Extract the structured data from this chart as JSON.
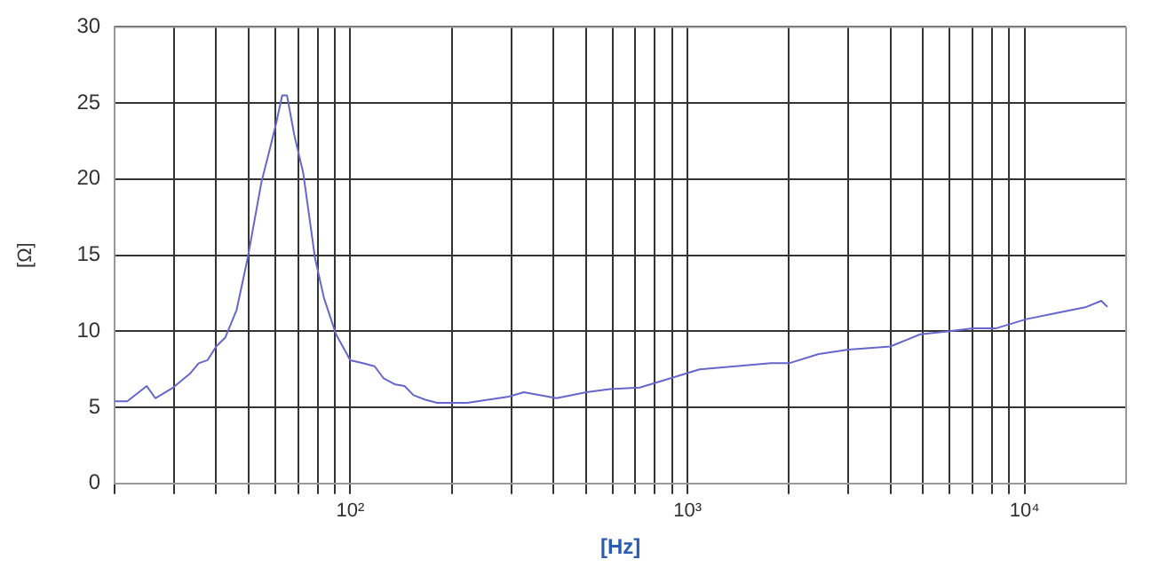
{
  "chart_data": {
    "type": "line",
    "xlabel": "[Hz]",
    "ylabel": "[Ω]",
    "log": "x",
    "grid": true,
    "legend": false,
    "marker": "none",
    "line_style": "solid",
    "xlim": [
      20,
      20000
    ],
    "ylim": [
      0,
      30
    ],
    "yticks": [
      0,
      5,
      10,
      15,
      20,
      25,
      30
    ],
    "xticks": [
      {
        "value": 20,
        "label": null
      },
      {
        "value": 30,
        "label": null
      },
      {
        "value": 40,
        "label": null
      },
      {
        "value": 50,
        "label": null
      },
      {
        "value": 60,
        "label": null
      },
      {
        "value": 70,
        "label": null
      },
      {
        "value": 80,
        "label": null
      },
      {
        "value": 90,
        "label": null
      },
      {
        "value": 100,
        "label": "10²"
      },
      {
        "value": 200,
        "label": null
      },
      {
        "value": 300,
        "label": null
      },
      {
        "value": 400,
        "label": null
      },
      {
        "value": 500,
        "label": null
      },
      {
        "value": 600,
        "label": null
      },
      {
        "value": 700,
        "label": null
      },
      {
        "value": 800,
        "label": null
      },
      {
        "value": 900,
        "label": null
      },
      {
        "value": 1000,
        "label": "10³"
      },
      {
        "value": 2000,
        "label": null
      },
      {
        "value": 3000,
        "label": null
      },
      {
        "value": 4000,
        "label": null
      },
      {
        "value": 5000,
        "label": null
      },
      {
        "value": 6000,
        "label": null
      },
      {
        "value": 7000,
        "label": null
      },
      {
        "value": 8000,
        "label": null
      },
      {
        "value": 9000,
        "label": null
      },
      {
        "value": 10000,
        "label": "10⁴"
      }
    ],
    "series": [
      {
        "color": "#6666cc",
        "x": [
          20,
          21.8,
          24.9,
          26.4,
          29.8,
          33.4,
          35.5,
          37.7,
          40,
          42.6,
          46,
          49.6,
          54.5,
          57.9,
          60.3,
          62.8,
          64.9,
          68.2,
          72.5,
          78.6,
          83.5,
          90.7,
          100,
          108.9,
          118,
          125.6,
          136,
          144.8,
          154,
          167,
          181,
          222,
          295,
          327,
          409,
          501,
          589,
          722,
          887,
          1086,
          1388,
          1768,
          2000,
          2450,
          3000,
          3995,
          4900,
          5990,
          7020,
          8250,
          10130,
          12430,
          15240,
          16880,
          17600
        ],
        "values": [
          5.4,
          5.4,
          6.4,
          5.6,
          6.3,
          7.2,
          7.9,
          8.1,
          9.0,
          9.6,
          11.4,
          14.8,
          19.8,
          22.1,
          23.7,
          25.5,
          25.5,
          22.9,
          20.4,
          14.8,
          12.2,
          9.8,
          8.1,
          7.9,
          7.7,
          6.9,
          6.5,
          6.4,
          5.8,
          5.5,
          5.3,
          5.3,
          5.7,
          6.0,
          5.6,
          6.0,
          6.2,
          6.3,
          6.9,
          7.5,
          7.7,
          7.9,
          7.9,
          8.5,
          8.8,
          9.0,
          9.8,
          10.0,
          10.2,
          10.2,
          10.8,
          11.2,
          11.6,
          12.0,
          11.6
        ]
      }
    ]
  }
}
